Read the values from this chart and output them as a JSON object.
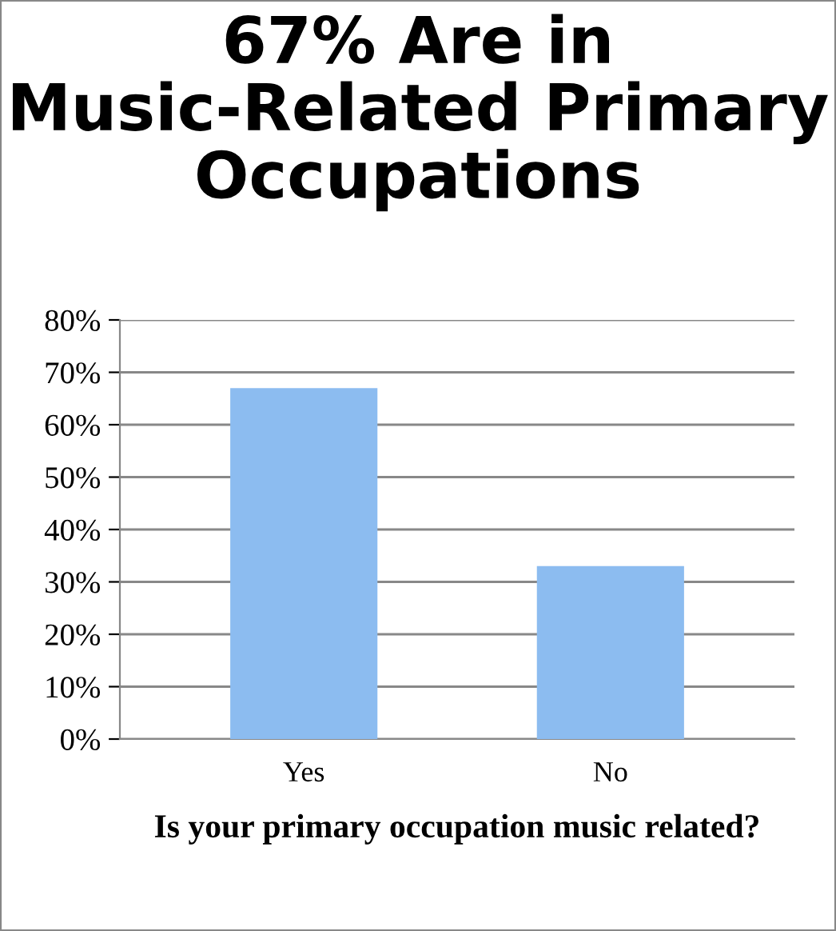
{
  "chart_data": {
    "type": "bar",
    "title": "67% Are in Music-Related Primary Occupations",
    "xlabel": "Is your primary occupation music related?",
    "categories": [
      "Yes",
      "No"
    ],
    "values": [
      67,
      33
    ],
    "color": "#8cbcf0",
    "ylim": [
      0,
      80
    ],
    "yticks": [
      {
        "value": 0,
        "label": "0%"
      },
      {
        "value": 10,
        "label": "10%"
      },
      {
        "value": 20,
        "label": "20%"
      },
      {
        "value": 30,
        "label": "30%"
      },
      {
        "value": 40,
        "label": "40%"
      },
      {
        "value": 50,
        "label": "50%"
      },
      {
        "value": 60,
        "label": "60%"
      },
      {
        "value": 70,
        "label": "70%"
      },
      {
        "value": 80,
        "label": "80%"
      }
    ],
    "grid": "y"
  }
}
